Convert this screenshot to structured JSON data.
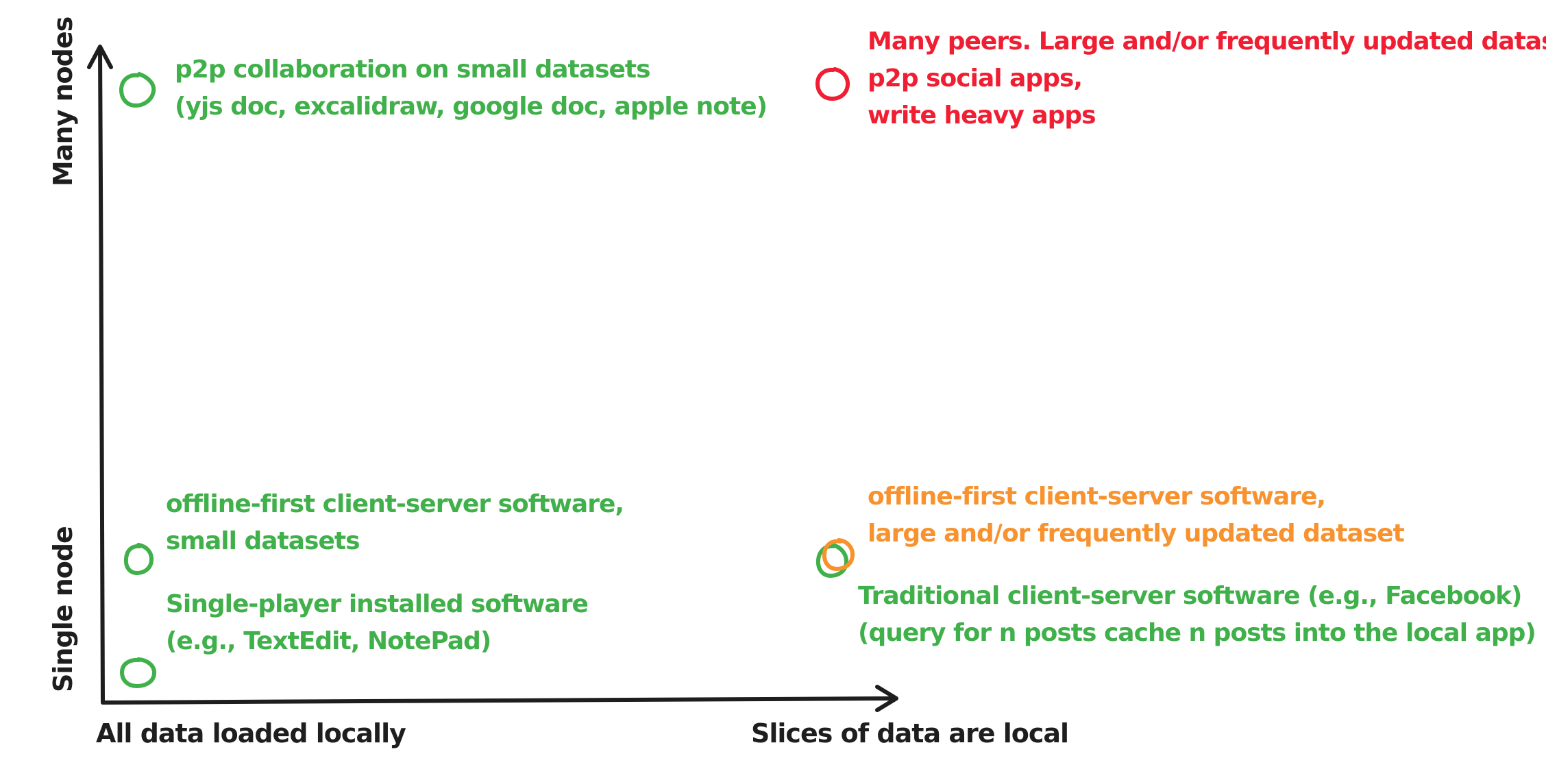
{
  "colors": {
    "axis": "#1e1e1e",
    "green": "#40b04a",
    "red": "#f01e32",
    "orange": "#f7922e"
  },
  "axes": {
    "x_left_label": "All data loaded locally",
    "x_right_label": "Slices of data are local",
    "y_top_label": "Many nodes",
    "y_bottom_label": "Single node"
  },
  "items": {
    "p2p_small": {
      "color": "green",
      "lines": [
        "p2p collaboration on small datasets",
        "(yjs doc, excalidraw, google doc, apple note)"
      ]
    },
    "p2p_large": {
      "color": "red",
      "lines": [
        "Many peers. Large and/or frequently updated dataset",
        "p2p social apps,",
        "write heavy apps"
      ]
    },
    "offline_small": {
      "color": "green",
      "lines": [
        "offline-first client-server software,",
        "small datasets"
      ]
    },
    "single_player": {
      "color": "green",
      "lines": [
        "Single-player installed software",
        "(e.g., TextEdit, NotePad)"
      ]
    },
    "offline_large": {
      "color": "orange",
      "lines": [
        "offline-first client-server software,",
        "large and/or frequently updated dataset"
      ]
    },
    "traditional": {
      "color": "green",
      "lines": [
        "Traditional client-server software (e.g., Facebook)",
        "(query for n posts cache n posts into the local app)"
      ]
    }
  }
}
